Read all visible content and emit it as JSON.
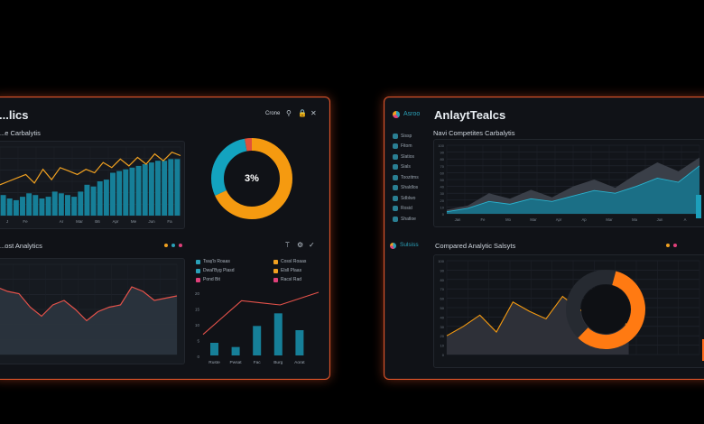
{
  "left": {
    "title": "...lics",
    "toolbar": {
      "label": "Crone"
    },
    "top_chart": {
      "title": "...e Carbalytis",
      "x_ticks": [
        "J",
        "Fe",
        "",
        "Ar",
        "Mar",
        "B6",
        "Apr",
        "Me",
        "Jun",
        "Fa"
      ],
      "line": [
        18,
        20,
        22,
        24,
        19,
        27,
        21,
        28,
        26,
        24,
        27,
        25,
        31,
        28,
        33,
        29,
        34,
        30,
        36,
        32,
        37,
        35
      ],
      "bars": [
        12,
        10,
        9,
        11,
        13,
        12,
        10,
        11,
        14,
        13,
        12,
        11,
        14,
        18,
        17,
        20,
        21,
        25,
        26,
        27,
        28,
        29,
        30,
        31,
        32,
        32,
        33,
        33
      ]
    },
    "donut": {
      "label": "3%",
      "orange_pct": 68,
      "teal_pct": 29,
      "red_pct": 3
    },
    "bottom_section": {
      "title": "...ost Analytics"
    },
    "area_chart": {
      "values": [
        30,
        28,
        27,
        21,
        17,
        22,
        24,
        20,
        15,
        19,
        21,
        22,
        30,
        28,
        24,
        25,
        26
      ],
      "x_ticks": [
        "",
        "",
        "",
        "",
        "",
        "",
        "",
        "",
        "",
        "",
        ""
      ],
      "y_ticks": []
    },
    "legend": [
      {
        "label": "Tsaş'b Roaas",
        "color": "#2aa0b8"
      },
      {
        "label": "Dwal'Byg Piasd",
        "color": "#2aa0b8"
      },
      {
        "label": "Pond Bit",
        "color": "#e0407a"
      },
      {
        "label": "Cossl Roaas",
        "color": "#f0a020"
      },
      {
        "label": "Elsll Plaas",
        "color": "#f0a020"
      },
      {
        "label": "Racsl Rad",
        "color": "#e0407a"
      }
    ],
    "mini_chart": {
      "bars": [
        6,
        4,
        14,
        20,
        12
      ],
      "line": [
        10,
        18,
        26,
        25,
        24,
        27,
        30
      ],
      "labels": [
        "Ruste",
        "Pwsat",
        "Fac",
        "Burg",
        "Aorat"
      ],
      "y_ticks": [
        "20",
        "15",
        "10",
        "5",
        "0"
      ]
    }
  },
  "right": {
    "brand": "Asroo",
    "title": "AnlaytTealcs",
    "nav": [
      "Sissp",
      "Fitom",
      "Slatios",
      "Sials",
      "Toozitms",
      "Shaldlos",
      "Sdblwo",
      "Rosid",
      "Shatloe"
    ],
    "top_chart": {
      "title": "Navi Competites Carbalytis",
      "y_ticks": [
        "100",
        "90",
        "80",
        "70",
        "60",
        "50",
        "40",
        "30",
        "20",
        "10",
        "0"
      ],
      "x_ticks": [
        "Jan",
        "Fe",
        "Mo",
        "Mar",
        "Apr",
        "Ap",
        "Mar",
        "Ma",
        "Jun",
        "A"
      ],
      "gray": [
        6,
        12,
        30,
        22,
        35,
        24,
        40,
        50,
        38,
        58,
        75,
        62,
        82
      ],
      "teal": [
        3,
        8,
        18,
        14,
        22,
        18,
        26,
        34,
        30,
        40,
        52,
        46,
        70
      ]
    },
    "bottom_section": {
      "brand": "Sulsiss",
      "title": "Compared Analytic Salsyts"
    },
    "bottom_chart": {
      "y_ticks": [
        "100",
        "90",
        "80",
        "70",
        "60",
        "50",
        "40",
        "30",
        "20",
        "10",
        "0"
      ],
      "x_ticks": [
        "",
        "",
        "",
        "",
        "",
        "",
        "",
        "",
        "",
        "",
        "",
        ""
      ],
      "gray": [
        22,
        28,
        35,
        30,
        44,
        38,
        34,
        32,
        28,
        24,
        22,
        20
      ],
      "orange": [
        20,
        30,
        42,
        24,
        56,
        46,
        38,
        62,
        48,
        40,
        36,
        32
      ],
      "donut_orange_pct": 58
    }
  },
  "colors": {
    "accent": "#ff6a1a",
    "teal": "#1c9fbb",
    "orange": "#f39a12",
    "border": "#e2552a",
    "panel": "#101217"
  }
}
